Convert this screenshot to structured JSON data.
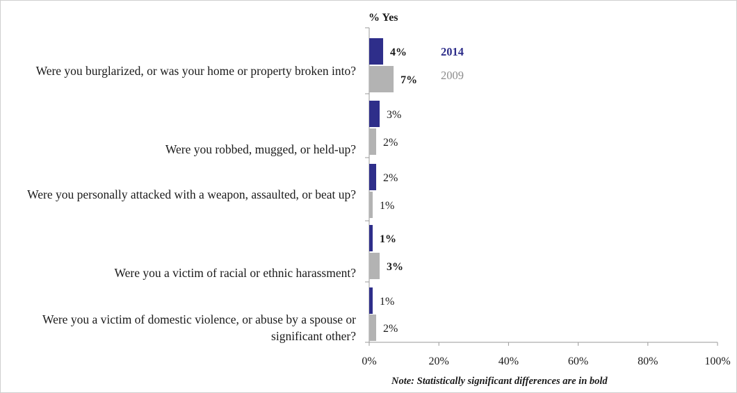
{
  "chart_data": {
    "type": "bar",
    "orientation": "horizontal",
    "title": "% Yes",
    "categories": [
      "Were you burglarized, or was your home or property broken into?",
      "Were you robbed, mugged, or held-up?",
      "Were you personally attacked with a weapon, assaulted, or beat up?",
      "Were you a victim of racial or ethnic harassment?",
      "Were you a victim of domestic violence, or abuse by a spouse or significant other?"
    ],
    "series": [
      {
        "name": "2014",
        "color": "#2e2e8a",
        "values": [
          4,
          3,
          2,
          1,
          1
        ],
        "labels": [
          "4%",
          "3%",
          "2%",
          "1%",
          "1%"
        ],
        "bold": [
          true,
          false,
          false,
          true,
          false
        ]
      },
      {
        "name": "2009",
        "color": "#b3b3b3",
        "values": [
          7,
          2,
          1,
          3,
          2
        ],
        "labels": [
          "7%",
          "2%",
          "1%",
          "3%",
          "2%"
        ],
        "bold": [
          true,
          false,
          false,
          true,
          false
        ]
      }
    ],
    "xlim": [
      0,
      100
    ],
    "xticks": [
      "0%",
      "20%",
      "40%",
      "60%",
      "80%",
      "100%"
    ],
    "legend": {
      "position": "right of first category",
      "entries": [
        "2014",
        "2009"
      ]
    },
    "grid": false,
    "note": "Note: Statistically significant differences are in bold"
  }
}
